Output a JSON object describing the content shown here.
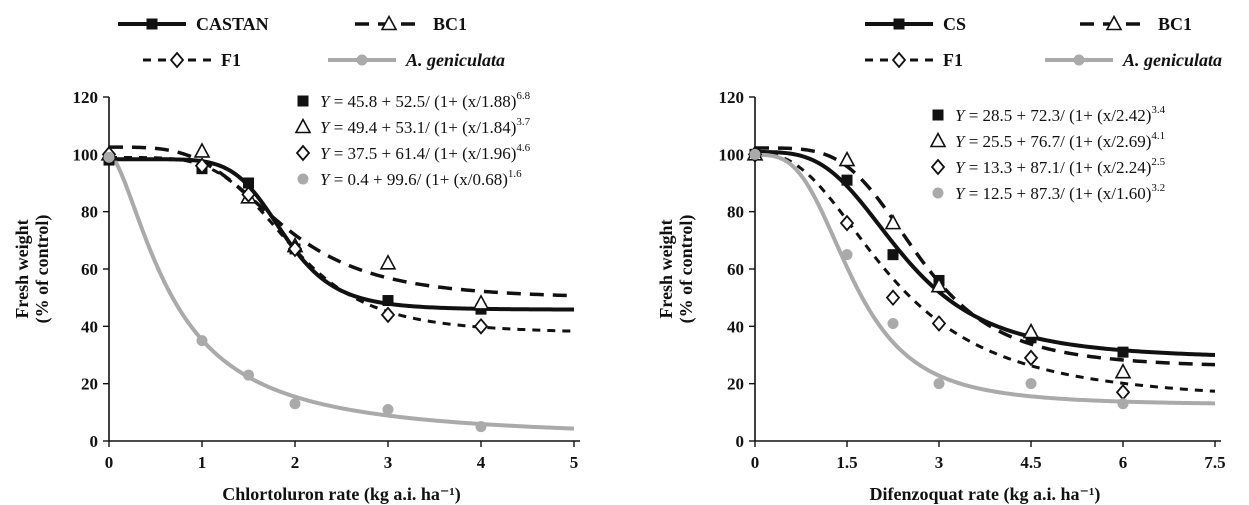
{
  "chart_data": [
    {
      "type": "line",
      "xlabel": "Chlortoluron rate (kg a.i. ha⁻¹)",
      "ylabel": [
        "Fresh weight",
        "(% of control)"
      ],
      "xlim": [
        0,
        5
      ],
      "ylim": [
        0,
        120
      ],
      "x_ticks": [
        "0",
        "1",
        "2",
        "3",
        "4",
        "5"
      ],
      "y_ticks": [
        "0",
        "20",
        "40",
        "60",
        "80",
        "100",
        "120"
      ],
      "legend_position": "top",
      "series": [
        {
          "name": "CASTAN",
          "marker": "filled-square",
          "line": "solid-black",
          "x": [
            0,
            1,
            1.5,
            2,
            3,
            4
          ],
          "y": [
            98,
            95,
            90,
            67,
            49,
            46
          ],
          "fit": {
            "c": 45.8,
            "d": 52.5,
            "x0": 1.88,
            "b": 6.8
          },
          "equation": {
            "pre": "Y",
            "body": " = 45.8 + 52.5/ (1+ (x/1.88)",
            "exp": "6.8"
          }
        },
        {
          "name": "BC1",
          "marker": "open-triangle",
          "line": "dash-black",
          "x": [
            0,
            1,
            1.5,
            2,
            3,
            4
          ],
          "y": [
            100,
            101,
            85,
            68,
            62,
            48
          ],
          "fit": {
            "c": 49.4,
            "d": 53.1,
            "x0": 1.84,
            "b": 3.7
          },
          "equation": {
            "pre": "Y",
            "body": " = 49.4 + 53.1/ (1+ (x/1.84)",
            "exp": "3.7"
          }
        },
        {
          "name": "F1",
          "marker": "open-diamond",
          "line": "short-dash-black",
          "x": [
            0,
            1,
            1.5,
            2,
            3,
            4
          ],
          "y": [
            100,
            96,
            86,
            67,
            44,
            40
          ],
          "fit": {
            "c": 37.5,
            "d": 61.4,
            "x0": 1.96,
            "b": 4.6
          },
          "equation": {
            "pre": "Y",
            "body": " = 37.5 + 61.4/ (1+ (x/1.96)",
            "exp": "4.6"
          }
        },
        {
          "name": "A. geniculata",
          "marker": "filled-circle-grey",
          "line": "solid-grey",
          "x": [
            0,
            1,
            1.5,
            2,
            3,
            4
          ],
          "y": [
            99,
            35,
            23,
            13,
            11,
            5
          ],
          "fit": {
            "c": 0.4,
            "d": 99.6,
            "x0": 0.68,
            "b": 1.6
          },
          "equation": {
            "pre": "Y",
            "body": " = 0.4 + 99.6/ (1+ (x/0.68)",
            "exp": "1.6"
          }
        }
      ]
    },
    {
      "type": "line",
      "xlabel": "Difenzoquat rate (kg a.i. ha⁻¹)",
      "ylabel": [
        "Fresh weight",
        "(% of control)"
      ],
      "xlim": [
        0,
        7.5
      ],
      "ylim": [
        0,
        120
      ],
      "x_ticks": [
        "0",
        "1.5",
        "3",
        "4.5",
        "6",
        "7.5"
      ],
      "y_ticks": [
        "0",
        "20",
        "40",
        "60",
        "80",
        "100",
        "120"
      ],
      "legend_position": "top",
      "series": [
        {
          "name": "CS",
          "marker": "filled-square",
          "line": "solid-black",
          "x": [
            0,
            1.5,
            2.25,
            3,
            4.5,
            6
          ],
          "y": [
            100,
            91,
            65,
            56,
            36,
            31
          ],
          "fit": {
            "c": 28.5,
            "d": 72.3,
            "x0": 2.42,
            "b": 3.4
          },
          "equation": {
            "pre": "Y",
            "body": " = 28.5 + 72.3/ (1+ (x/2.42)",
            "exp": "3.4"
          }
        },
        {
          "name": "BC1",
          "marker": "open-triangle",
          "line": "dash-black",
          "x": [
            0,
            1.5,
            2.25,
            3,
            4.5,
            6
          ],
          "y": [
            100,
            98,
            76,
            54,
            38,
            24
          ],
          "fit": {
            "c": 25.5,
            "d": 76.7,
            "x0": 2.69,
            "b": 4.1
          },
          "equation": {
            "pre": "Y",
            "body": " = 25.5 + 76.7/ (1+ (x/2.69)",
            "exp": "4.1"
          }
        },
        {
          "name": "F1",
          "marker": "open-diamond",
          "line": "short-dash-black",
          "x": [
            0,
            1.5,
            2.25,
            3,
            4.5,
            6
          ],
          "y": [
            100,
            76,
            50,
            41,
            29,
            17
          ],
          "fit": {
            "c": 13.3,
            "d": 87.1,
            "x0": 2.24,
            "b": 2.5
          },
          "equation": {
            "pre": "Y",
            "body": " = 13.3 + 87.1/ (1+ (x/2.24)",
            "exp": "2.5"
          }
        },
        {
          "name": "A. geniculata",
          "marker": "filled-circle-grey",
          "line": "solid-grey",
          "x": [
            0,
            1.5,
            2.25,
            3,
            4.5,
            6
          ],
          "y": [
            100,
            65,
            41,
            20,
            20,
            13
          ],
          "fit": {
            "c": 12.5,
            "d": 87.3,
            "x0": 1.6,
            "b": 3.2
          },
          "equation": {
            "pre": "Y",
            "body": " = 12.5 + 87.3/ (1+ (x/1.60)",
            "exp": "3.2"
          }
        }
      ]
    }
  ],
  "colors": {
    "black": "#111111",
    "grey": "#aaaaaa"
  }
}
